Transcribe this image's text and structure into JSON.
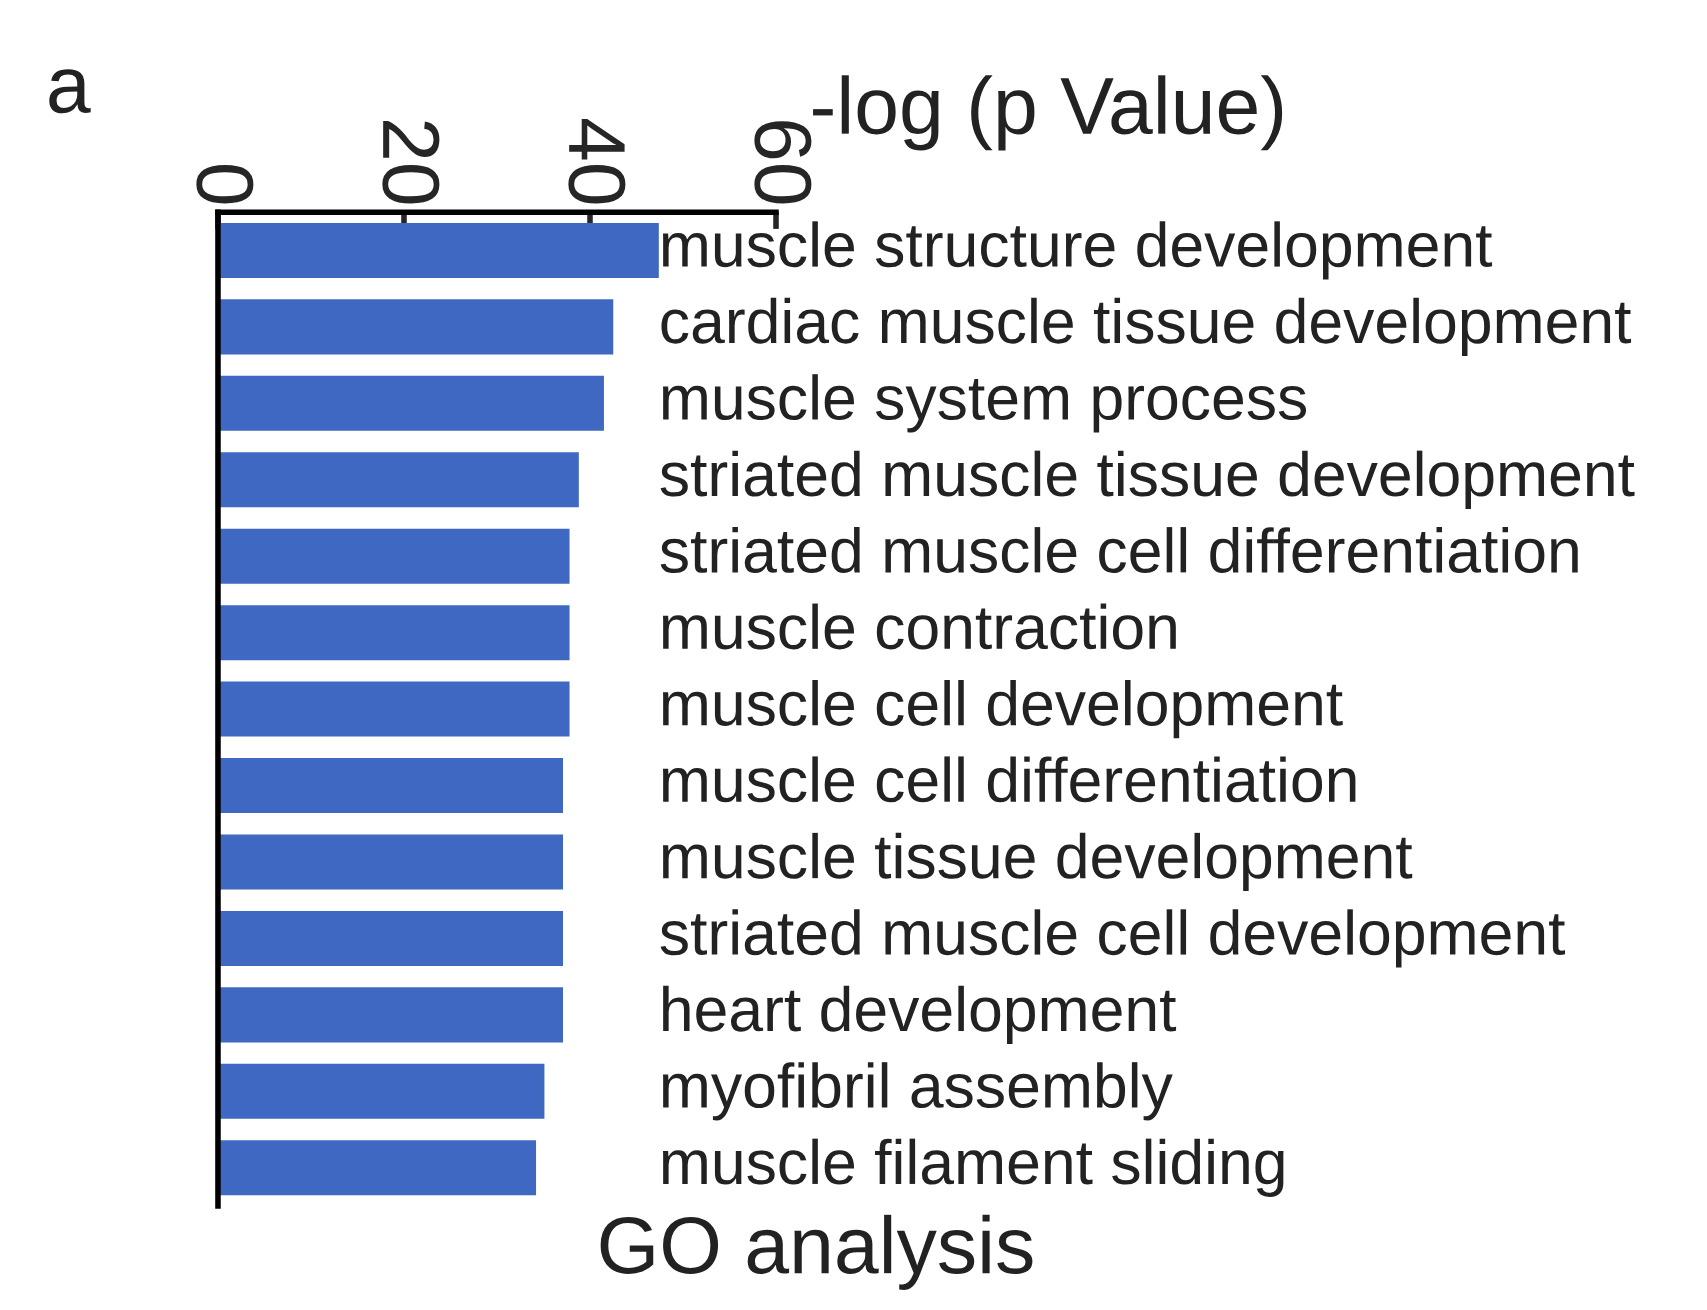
{
  "chart_data": {
    "type": "bar",
    "orientation": "horizontal",
    "title": "GO analysis",
    "xlabel": "-log (p Value)",
    "annotations": [
      "a"
    ],
    "categories": [
      "muscle structure development",
      "cardiac muscle tissue development",
      "muscle system process",
      "striated muscle tissue development",
      "striated muscle cell differentiation",
      "muscle contraction",
      "muscle cell development",
      "muscle cell differentiation",
      "muscle tissue development",
      "striated muscle cell development",
      "heart development",
      "myofibril assembly",
      "muscle filament sliding"
    ],
    "values": [
      47.4,
      42.5,
      41.5,
      38.8,
      37.8,
      37.8,
      37.8,
      37.1,
      37.1,
      37.1,
      37.1,
      35.1,
      34.2
    ],
    "color": "#3f68c2",
    "xlim": [
      0,
      60
    ],
    "xticks": [
      0,
      20,
      40,
      60
    ],
    "grid": false,
    "legend": false
  }
}
